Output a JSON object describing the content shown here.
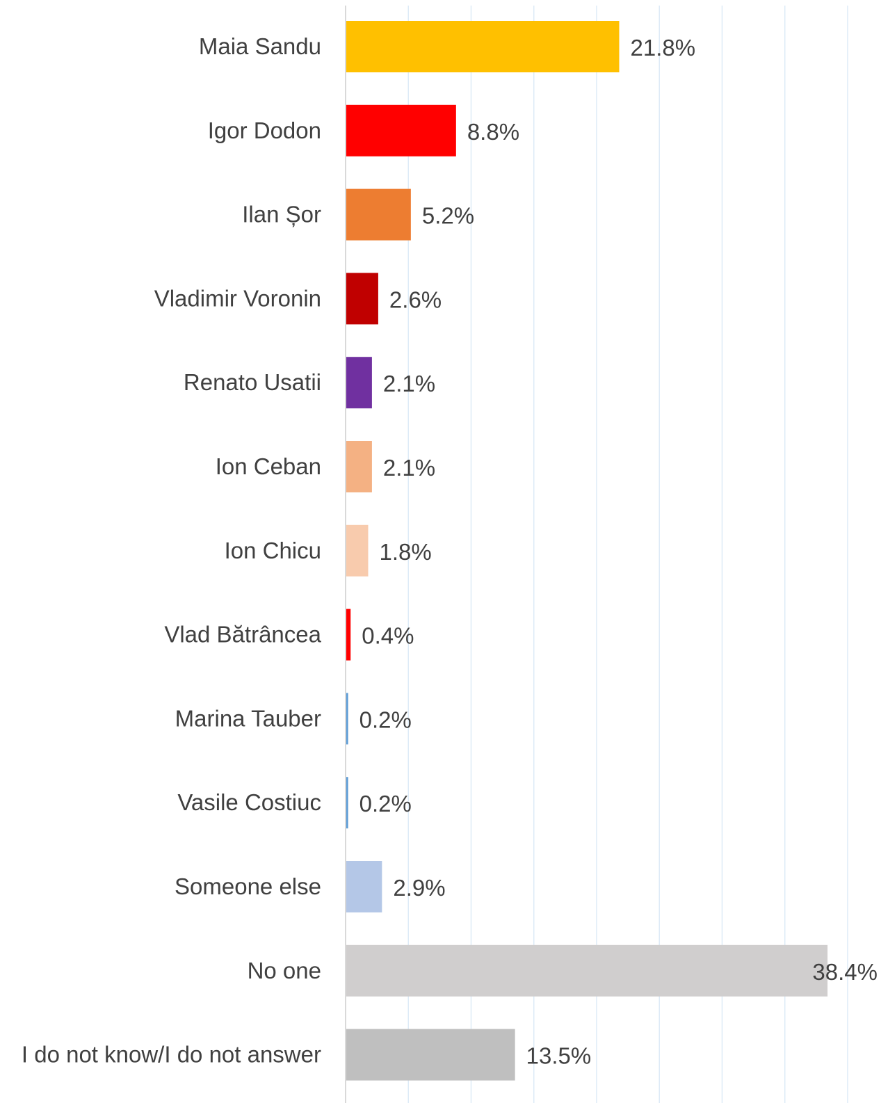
{
  "chart_data": {
    "type": "bar",
    "orientation": "horizontal",
    "title": "",
    "xlabel": "",
    "ylabel": "",
    "xlim": [
      0,
      40
    ],
    "grid": "vertical gridlines every 5",
    "legend": "none",
    "categories": [
      "Maia Sandu",
      "Igor Dodon",
      "Ilan Șor",
      "Vladimir Voronin",
      "Renato Usatii",
      "Ion Ceban",
      "Ion Chicu",
      "Vlad Bătrâncea",
      "Marina Tauber",
      "Vasile Costiuc",
      "Someone else",
      "No one",
      "I do not know/I do not answer"
    ],
    "values": [
      21.8,
      8.8,
      5.2,
      2.6,
      2.1,
      2.1,
      1.8,
      0.4,
      0.2,
      0.2,
      2.9,
      38.4,
      13.5
    ],
    "value_labels": [
      "21.8%",
      "8.8%",
      "5.2%",
      "2.6%",
      "2.1%",
      "2.1%",
      "1.8%",
      "0.4%",
      "0.2%",
      "0.2%",
      "2.9%",
      "38.4%",
      "13.5%"
    ],
    "colors": [
      "#FFC000",
      "#FF0000",
      "#ED7D31",
      "#C00000",
      "#7030A0",
      "#F4B183",
      "#F8CBAD",
      "#FF0000",
      "#5B9BD5",
      "#5B9BD5",
      "#B4C7E7",
      "#D0CECE",
      "#BFBFBF"
    ],
    "axis_color": "#D9D9D9",
    "grid_color": "#DEEBF7",
    "text_color": "#404040"
  }
}
